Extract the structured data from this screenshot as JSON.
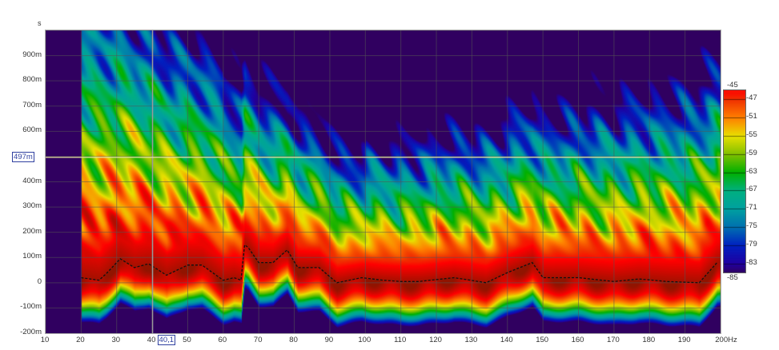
{
  "chart_data": {
    "type": "heatmap",
    "title": "",
    "x_unit": "Hz",
    "y_unit": "s",
    "xlim": [
      10,
      200
    ],
    "ylim": [
      -0.2,
      1.0
    ],
    "x_ticks": [
      "10",
      "20",
      "30",
      "40",
      "50",
      "60",
      "70",
      "80",
      "90",
      "100",
      "110",
      "120",
      "130",
      "140",
      "150",
      "160",
      "170",
      "180",
      "190",
      "200Hz"
    ],
    "x_tick_values": [
      10,
      20,
      30,
      40,
      50,
      60,
      70,
      80,
      90,
      100,
      110,
      120,
      130,
      140,
      150,
      160,
      170,
      180,
      190,
      200
    ],
    "y_ticks": [
      "900m",
      "800m",
      "700m",
      "600m",
      "400m",
      "300m",
      "200m",
      "100m",
      "0",
      "-100m",
      "-200m"
    ],
    "y_tick_values": [
      0.9,
      0.8,
      0.7,
      0.6,
      0.4,
      0.3,
      0.2,
      0.1,
      0,
      -0.1,
      -0.2
    ],
    "grid": true,
    "data_start_freq": 20,
    "colorbar": {
      "min": -85,
      "max": -45,
      "min_label": "-85",
      "max_label": "-45",
      "ticks": [
        "-47",
        "-51",
        "-55",
        "-59",
        "-63",
        "-67",
        "-71",
        "-75",
        "-79",
        "-83"
      ],
      "tick_values": [
        -47,
        -51,
        -55,
        -59,
        -63,
        -67,
        -71,
        -75,
        -79,
        -83
      ],
      "colors": [
        "#300060",
        "#2000a0",
        "#0020c0",
        "#0070b0",
        "#00a0a0",
        "#00b080",
        "#00b000",
        "#80c000",
        "#e8e000",
        "#ff8000",
        "#f03000",
        "#ff0000"
      ],
      "color_values": [
        -85,
        -83,
        -79,
        -75,
        -71,
        -67,
        -63,
        -59,
        -55,
        -51,
        -47,
        -45
      ]
    },
    "peak_ridge": {
      "freq": [
        20,
        25,
        27,
        31,
        35,
        39,
        44,
        50,
        54,
        60,
        63,
        65,
        66,
        67,
        70,
        74,
        78,
        81,
        87,
        92,
        99,
        105,
        110,
        115,
        125,
        134,
        140,
        147,
        150,
        160,
        170,
        177,
        185,
        194,
        199
      ],
      "time_s": [
        0.02,
        0.01,
        0.035,
        0.095,
        0.06,
        0.075,
        0.03,
        0.07,
        0.07,
        0.01,
        0.02,
        0.01,
        0.15,
        0.14,
        0.08,
        0.08,
        0.13,
        0.06,
        0.06,
        0.0,
        0.02,
        0.01,
        0.005,
        0.005,
        0.02,
        0.0,
        0.04,
        0.08,
        0.02,
        0.02,
        0.005,
        0.015,
        0.005,
        0.0,
        0.08
      ]
    },
    "cursor": {
      "freq_label": "40,1",
      "freq": 40.1,
      "time_label": "497m",
      "time": 0.497
    }
  }
}
